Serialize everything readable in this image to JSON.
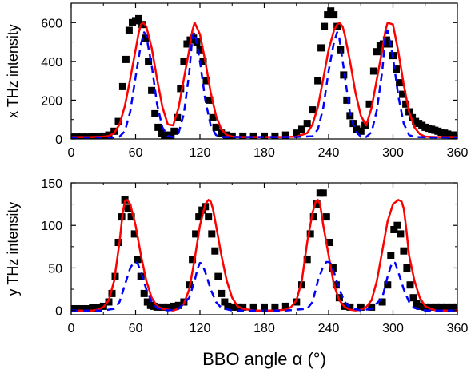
{
  "chart_data": [
    {
      "type": "scatter",
      "ylabel": "x THz intensity",
      "xlim": [
        0,
        360
      ],
      "ylim": [
        0,
        700
      ],
      "xticks": [
        "0",
        "60",
        "120",
        "180",
        "240",
        "300",
        "360"
      ],
      "yticks": [
        "0",
        "200",
        "400",
        "600"
      ],
      "colors": {
        "markers": "#000000",
        "solid": "#ff0000",
        "dashed": "#0000ff"
      },
      "series": [
        {
          "style": "square-markers",
          "x": [
            0,
            5,
            10,
            15,
            20,
            25,
            30,
            35,
            40,
            44,
            48,
            51,
            54,
            57,
            60,
            63,
            66,
            69,
            72,
            75,
            78,
            81,
            84,
            87,
            90,
            93,
            96,
            99,
            102,
            105,
            108,
            111,
            114,
            117,
            120,
            123,
            126,
            129,
            132,
            135,
            140,
            145,
            150,
            160,
            170,
            180,
            190,
            200,
            210,
            215,
            220,
            225,
            230,
            233,
            236,
            239,
            242,
            245,
            248,
            251,
            254,
            257,
            260,
            263,
            266,
            270,
            274,
            278,
            282,
            285,
            288,
            291,
            294,
            297,
            300,
            303,
            306,
            309,
            312,
            315,
            318,
            321,
            324,
            327,
            330,
            333,
            336,
            339,
            342,
            345,
            348,
            351,
            354,
            357,
            360
          ],
          "y": [
            10,
            10,
            10,
            10,
            12,
            12,
            15,
            20,
            40,
            90,
            270,
            410,
            560,
            600,
            610,
            620,
            590,
            520,
            400,
            250,
            130,
            60,
            30,
            20,
            15,
            20,
            40,
            110,
            260,
            400,
            490,
            510,
            520,
            500,
            460,
            400,
            300,
            200,
            110,
            60,
            30,
            20,
            15,
            15,
            15,
            15,
            15,
            20,
            30,
            50,
            80,
            150,
            300,
            470,
            580,
            640,
            660,
            640,
            580,
            460,
            330,
            200,
            120,
            80,
            50,
            40,
            70,
            180,
            350,
            450,
            480,
            490,
            510,
            490,
            430,
            360,
            290,
            230,
            180,
            140,
            110,
            90,
            80,
            70,
            60,
            55,
            50,
            45,
            40,
            35,
            30,
            25,
            20,
            20,
            20
          ]
        },
        {
          "style": "solid-line",
          "x": [
            0,
            10,
            20,
            30,
            35,
            40,
            45,
            50,
            55,
            60,
            63,
            65,
            67,
            70,
            75,
            80,
            85,
            90,
            95,
            100,
            105,
            110,
            113,
            115,
            120,
            125,
            130,
            135,
            140,
            145,
            150,
            160,
            170,
            180,
            190,
            200,
            210,
            220,
            225,
            230,
            235,
            240,
            245,
            248,
            250,
            253,
            255,
            260,
            265,
            270,
            275,
            280,
            285,
            290,
            293,
            295,
            300,
            305,
            310,
            315,
            320,
            325,
            330,
            340,
            350,
            360
          ],
          "y": [
            10,
            10,
            10,
            12,
            15,
            30,
            75,
            170,
            310,
            460,
            550,
            590,
            600,
            580,
            470,
            310,
            165,
            75,
            70,
            160,
            310,
            460,
            560,
            600,
            540,
            400,
            240,
            120,
            50,
            20,
            12,
            10,
            10,
            10,
            10,
            10,
            12,
            30,
            75,
            165,
            310,
            460,
            560,
            590,
            600,
            580,
            540,
            400,
            240,
            120,
            70,
            160,
            310,
            460,
            560,
            600,
            590,
            450,
            280,
            140,
            60,
            25,
            12,
            10,
            10,
            10
          ]
        },
        {
          "style": "dashed-line",
          "x": [
            0,
            20,
            40,
            45,
            50,
            55,
            60,
            65,
            68,
            70,
            75,
            80,
            85,
            90,
            95,
            100,
            105,
            110,
            113,
            115,
            120,
            125,
            130,
            135,
            140,
            150,
            180,
            210,
            225,
            230,
            235,
            240,
            245,
            248,
            250,
            255,
            260,
            265,
            270,
            275,
            280,
            285,
            290,
            293,
            295,
            300,
            305,
            310,
            315,
            320,
            340,
            360
          ],
          "y": [
            8,
            8,
            8,
            12,
            40,
            140,
            320,
            490,
            550,
            530,
            380,
            180,
            60,
            15,
            10,
            30,
            130,
            340,
            530,
            550,
            400,
            200,
            70,
            20,
            10,
            10,
            10,
            10,
            14,
            50,
            160,
            350,
            500,
            550,
            520,
            330,
            130,
            40,
            12,
            10,
            35,
            150,
            350,
            540,
            560,
            420,
            220,
            80,
            20,
            10,
            8,
            8
          ]
        }
      ]
    },
    {
      "type": "scatter",
      "ylabel": "y THz intensity",
      "xlabel": "BBO angle α (°)",
      "xlim": [
        0,
        360
      ],
      "ylim": [
        -5,
        150
      ],
      "xticks": [
        "0",
        "60",
        "120",
        "180",
        "240",
        "300",
        "360"
      ],
      "yticks": [
        "0",
        "50",
        "100",
        "150"
      ],
      "colors": {
        "markers": "#000000",
        "solid": "#ff0000",
        "dashed": "#0000ff"
      },
      "series": [
        {
          "style": "square-markers",
          "x": [
            0,
            5,
            10,
            15,
            20,
            25,
            30,
            35,
            38,
            41,
            44,
            47,
            50,
            53,
            56,
            59,
            62,
            65,
            68,
            71,
            74,
            77,
            80,
            85,
            90,
            95,
            100,
            105,
            110,
            113,
            116,
            119,
            122,
            125,
            128,
            131,
            134,
            137,
            140,
            143,
            146,
            150,
            155,
            160,
            170,
            180,
            190,
            200,
            210,
            215,
            220,
            223,
            226,
            229,
            232,
            235,
            238,
            241,
            244,
            247,
            250,
            255,
            260,
            270,
            280,
            290,
            295,
            298,
            301,
            304,
            307,
            310,
            313,
            316,
            319,
            322,
            325,
            330,
            335,
            340,
            345,
            350,
            355,
            360
          ],
          "y": [
            2,
            2,
            2,
            2,
            3,
            3,
            5,
            10,
            20,
            40,
            80,
            110,
            130,
            120,
            110,
            90,
            60,
            40,
            20,
            10,
            6,
            5,
            4,
            4,
            4,
            5,
            6,
            10,
            30,
            60,
            90,
            110,
            118,
            122,
            110,
            90,
            70,
            40,
            20,
            10,
            5,
            4,
            4,
            4,
            4,
            4,
            4,
            5,
            10,
            30,
            60,
            90,
            110,
            125,
            138,
            138,
            110,
            80,
            50,
            30,
            15,
            5,
            4,
            4,
            4,
            10,
            30,
            65,
            95,
            100,
            90,
            70,
            50,
            30,
            15,
            8,
            5,
            4,
            4,
            4,
            4,
            4,
            4,
            4
          ]
        },
        {
          "style": "solid-line",
          "x": [
            0,
            10,
            20,
            25,
            30,
            35,
            40,
            45,
            48,
            50,
            52,
            55,
            60,
            65,
            70,
            75,
            80,
            85,
            90,
            95,
            100,
            105,
            110,
            115,
            120,
            125,
            128,
            130,
            132,
            135,
            140,
            145,
            150,
            155,
            160,
            170,
            180,
            190,
            200,
            205,
            210,
            215,
            220,
            225,
            228,
            230,
            232,
            235,
            240,
            245,
            250,
            255,
            260,
            265,
            270,
            275,
            280,
            285,
            290,
            295,
            300,
            305,
            308,
            310,
            312,
            315,
            320,
            325,
            330,
            335,
            340,
            350,
            360
          ],
          "y": [
            0,
            0,
            0,
            1,
            4,
            12,
            35,
            80,
            115,
            128,
            130,
            125,
            100,
            65,
            35,
            15,
            5,
            2,
            1,
            0,
            2,
            8,
            25,
            60,
            100,
            125,
            130,
            128,
            120,
            100,
            65,
            35,
            15,
            5,
            2,
            0,
            0,
            0,
            1,
            4,
            12,
            35,
            80,
            115,
            128,
            130,
            125,
            100,
            65,
            30,
            12,
            4,
            1,
            0,
            1,
            4,
            12,
            35,
            70,
            105,
            125,
            130,
            128,
            120,
            100,
            65,
            35,
            15,
            5,
            2,
            0,
            0,
            0
          ]
        },
        {
          "style": "dashed-line",
          "x": [
            0,
            30,
            40,
            45,
            50,
            55,
            58,
            60,
            62,
            65,
            70,
            75,
            80,
            90,
            100,
            110,
            115,
            118,
            120,
            122,
            125,
            130,
            135,
            140,
            150,
            200,
            220,
            225,
            230,
            235,
            238,
            240,
            242,
            245,
            250,
            255,
            260,
            270,
            280,
            290,
            295,
            298,
            300,
            302,
            305,
            310,
            315,
            320,
            330,
            360
          ],
          "y": [
            0,
            0,
            2,
            10,
            30,
            50,
            56,
            57,
            55,
            45,
            25,
            10,
            3,
            0,
            2,
            15,
            35,
            50,
            56,
            55,
            45,
            25,
            10,
            3,
            0,
            0,
            2,
            10,
            35,
            52,
            57,
            57,
            55,
            45,
            25,
            10,
            3,
            0,
            2,
            15,
            40,
            52,
            57,
            56,
            45,
            25,
            10,
            3,
            0,
            0
          ]
        }
      ]
    }
  ]
}
